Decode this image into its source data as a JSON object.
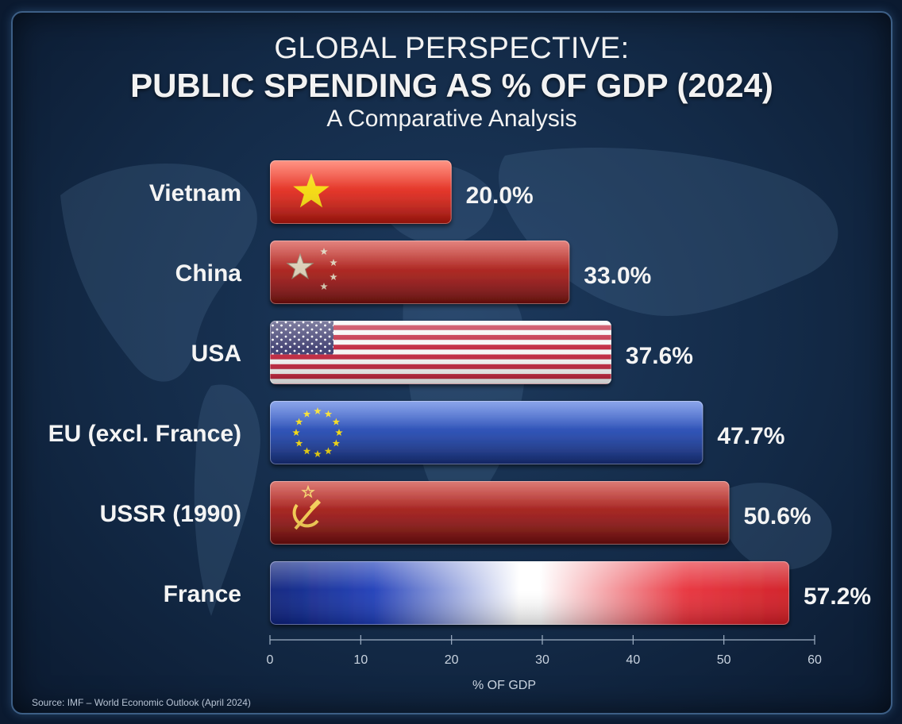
{
  "title_line1": "GLOBAL PERSPECTIVE:",
  "title_line2": "PUBLIC SPENDING AS % OF GDP (2024)",
  "subtitle": "A Comparative Analysis",
  "source": "Source: IMF – World Economic Outlook (April 2024)",
  "chart_data": {
    "type": "bar",
    "orientation": "horizontal",
    "categories": [
      "Vietnam",
      "China",
      "USA",
      "EU (excl. France)",
      "USSR (1990)",
      "France"
    ],
    "values": [
      20.0,
      33.0,
      37.6,
      47.7,
      50.6,
      57.2
    ],
    "value_labels": [
      "20.0%",
      "33.0%",
      "37.6%",
      "47.7%",
      "50.6%",
      "57.2%"
    ],
    "bar_styles": [
      "vietnam-flag",
      "china-flag",
      "usa-flag",
      "eu-flag",
      "ussr-flag",
      "france-flag"
    ],
    "xlabel": "% OF GDP",
    "xlim": [
      0,
      60
    ],
    "xticks": [
      0,
      10,
      20,
      30,
      40,
      50,
      60
    ],
    "grid": false,
    "colors": {
      "vietnam": "#d8261c",
      "china": "#a31d18",
      "usa_red": "#b22234",
      "usa_blue": "#3c3b6e",
      "eu": "#1f3fa0",
      "ussr": "#9e1a16",
      "france_blue": "#0a2a8a",
      "france_red": "#e0202a",
      "star_gold": "#f5d90a"
    }
  }
}
